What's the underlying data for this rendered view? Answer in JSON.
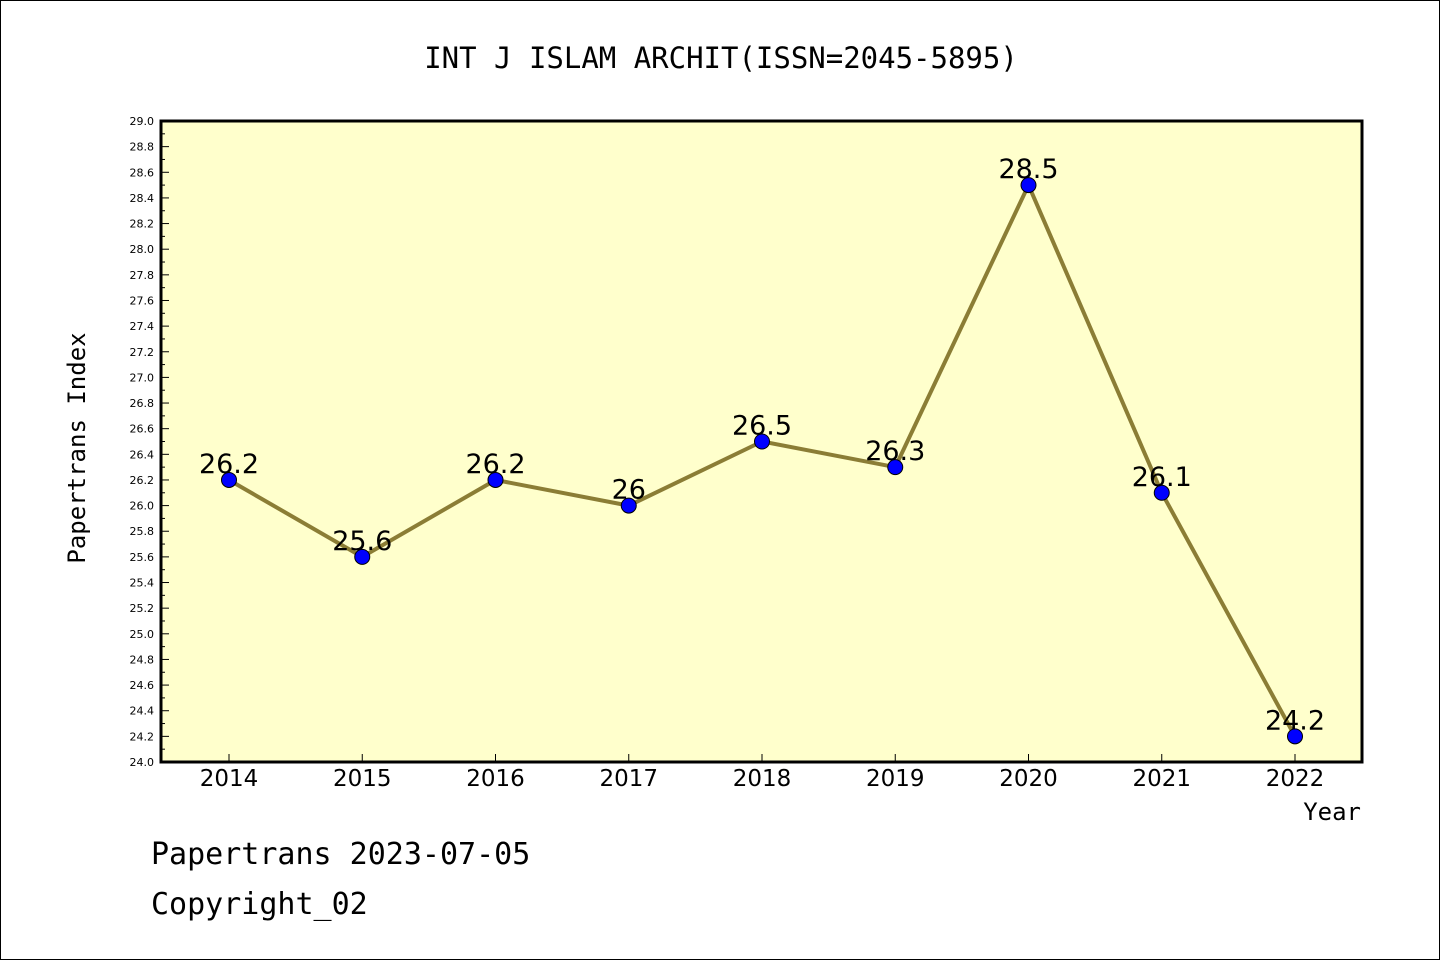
{
  "chart_data": {
    "type": "line",
    "title": "INT J ISLAM ARCHIT(ISSN=2045-5895)",
    "xlabel": "Year",
    "ylabel": "Papertrans Index",
    "categories": [
      "2014",
      "2015",
      "2016",
      "2017",
      "2018",
      "2019",
      "2020",
      "2021",
      "2022"
    ],
    "values": [
      26.2,
      25.6,
      26.2,
      26.0,
      26.5,
      26.3,
      28.5,
      26.1,
      24.2
    ],
    "data_labels": [
      "26.2",
      "25.6",
      "26.2",
      "26",
      "26.5",
      "26.3",
      "28.5",
      "26.1",
      "24.2"
    ],
    "ylim": [
      24.0,
      29.0
    ],
    "ytick_step": 0.2,
    "grid": false,
    "colors": {
      "plot_background": "#ffffcc",
      "line": "#8b7d35",
      "marker": "#0000ff",
      "axis": "#000000"
    }
  },
  "footer": {
    "date_line": "Papertrans 2023-07-05",
    "copyright_line": "Copyright_02"
  }
}
